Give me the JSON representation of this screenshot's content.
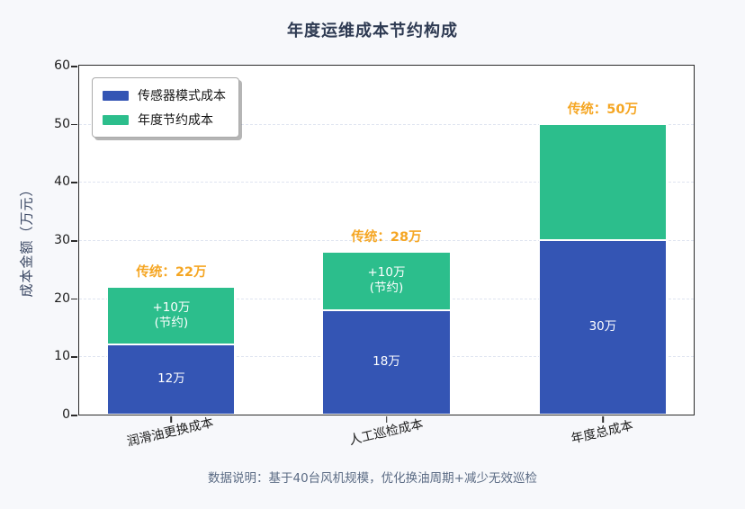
{
  "title": "年度运维成本节约构成",
  "y_axis": {
    "label": "成本金额（万元）",
    "ticks": [
      "60",
      "50",
      "40",
      "30",
      "20",
      "10",
      "0"
    ]
  },
  "x_axis": {
    "ticks": [
      "润滑油更换成本",
      "人工巡检成本",
      "年度总成本"
    ]
  },
  "legend": [
    {
      "label": "传感器模式成本",
      "color": "#3455b4"
    },
    {
      "label": "年度节约成本",
      "color": "#2cbe8c"
    }
  ],
  "bars": [
    {
      "annotation": "传统：22万",
      "sensor_label": "12万",
      "saving_label": "+10万",
      "saving_note": "(节约)"
    },
    {
      "annotation": "传统：28万",
      "sensor_label": "18万",
      "saving_label": "+10万",
      "saving_note": "(节约)"
    },
    {
      "annotation": "传统：50万",
      "sensor_label": "30万",
      "saving_label": "",
      "saving_note": ""
    }
  ],
  "caption": "数据说明：基于40台风机规模，优化换油周期+减少无效巡检",
  "colors": {
    "sensor_bar": "#3455b4",
    "saving_bar": "#2cbe8c",
    "annotation_text": "#f5a623",
    "figure_background": "#f7f8fb",
    "plot_background": "#ffffff"
  },
  "chart_data": {
    "type": "bar",
    "stacked": true,
    "title": "年度运维成本节约构成",
    "categories": [
      "润滑油更换成本",
      "人工巡检成本",
      "年度总成本"
    ],
    "series": [
      {
        "name": "传感器模式成本",
        "color": "#3455b4",
        "values": [
          12,
          18,
          30
        ]
      },
      {
        "name": "年度节约成本",
        "color": "#2cbe8c",
        "values": [
          10,
          10,
          20
        ]
      }
    ],
    "stack_totals": [
      22,
      28,
      50
    ],
    "annotations": [
      "传统：22万",
      "传统：28万",
      "传统：50万"
    ],
    "inner_labels_sensor": [
      "12万",
      "18万",
      "30万"
    ],
    "inner_labels_saving": [
      "+10万 (节约)",
      "+10万 (节约)",
      ""
    ],
    "xlabel": "",
    "ylabel": "成本金额（万元）",
    "ylim": [
      0,
      60
    ],
    "yticks": [
      0,
      10,
      20,
      30,
      40,
      50,
      60
    ],
    "grid": "horizontal dashed",
    "legend_position": "upper left",
    "footnote": "数据说明：基于40台风机规模，优化换油周期+减少无效巡检"
  }
}
